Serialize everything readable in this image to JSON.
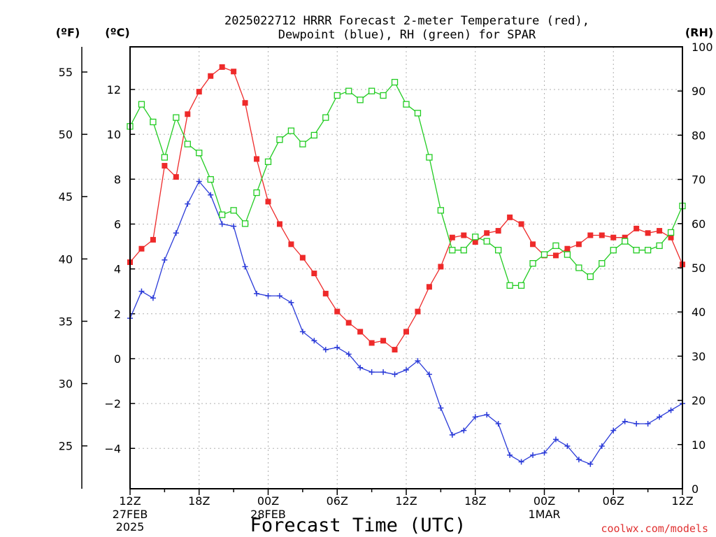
{
  "chart_data": {
    "type": "line",
    "title": [
      "2025022712 HRRR Forecast 2-meter Temperature (red),",
      "Dewpoint (blue), RH (green) for SPAR"
    ],
    "xlabel": "Forecast Time (UTC)",
    "watermark": "coolwx.com/models",
    "x_ticks": [
      {
        "hour": 0,
        "label": "12Z",
        "sub": [
          "27FEB",
          "2025"
        ]
      },
      {
        "hour": 6,
        "label": "18Z",
        "sub": []
      },
      {
        "hour": 12,
        "label": "00Z",
        "sub": [
          "28FEB"
        ]
      },
      {
        "hour": 18,
        "label": "06Z",
        "sub": []
      },
      {
        "hour": 24,
        "label": "12Z",
        "sub": []
      },
      {
        "hour": 30,
        "label": "18Z",
        "sub": []
      },
      {
        "hour": 36,
        "label": "00Z",
        "sub": [
          "1MAR"
        ]
      },
      {
        "hour": 42,
        "label": "06Z",
        "sub": []
      },
      {
        "hour": 48,
        "label": "12Z",
        "sub": []
      }
    ],
    "axes": {
      "fahrenheit": {
        "unit_label": "(ºF)",
        "ticks": [
          25,
          30,
          35,
          40,
          45,
          50,
          55
        ]
      },
      "celsius": {
        "unit_label": "(ºC)",
        "ylim": [
          -5.8,
          13.9
        ],
        "ticks": [
          -4,
          -2,
          0,
          2,
          4,
          6,
          8,
          10,
          12
        ]
      },
      "rh": {
        "unit_label": "(RH)",
        "ylim": [
          0,
          100
        ],
        "ticks": [
          0,
          10,
          20,
          30,
          40,
          50,
          60,
          70,
          80,
          90,
          100
        ]
      }
    },
    "grid": true,
    "series": [
      {
        "name": "2-meter Temperature",
        "axis": "celsius",
        "color": "#ee2a2a",
        "marker": "filled-square",
        "values": [
          4.3,
          4.9,
          5.3,
          8.6,
          8.1,
          10.9,
          11.9,
          12.6,
          13.0,
          12.8,
          11.4,
          8.9,
          7.0,
          6.0,
          5.1,
          4.5,
          3.8,
          2.9,
          2.1,
          1.6,
          1.2,
          0.7,
          0.8,
          0.4,
          1.2,
          2.1,
          3.2,
          4.1,
          5.4,
          5.5,
          5.2,
          5.6,
          5.7,
          6.3,
          6.0,
          5.1,
          4.6,
          4.6,
          4.9,
          5.1,
          5.5,
          5.5,
          5.4,
          5.4,
          5.8,
          5.6,
          5.7,
          5.4,
          4.2
        ]
      },
      {
        "name": "Dewpoint",
        "axis": "celsius",
        "color": "#2a3ad8",
        "marker": "plus",
        "values": [
          1.8,
          3.0,
          2.7,
          4.4,
          5.6,
          6.9,
          7.9,
          7.3,
          6.0,
          5.9,
          4.1,
          2.9,
          2.8,
          2.8,
          2.5,
          1.2,
          0.8,
          0.4,
          0.5,
          0.2,
          -0.4,
          -0.6,
          -0.6,
          -0.7,
          -0.5,
          -0.1,
          -0.7,
          -2.2,
          -3.4,
          -3.2,
          -2.6,
          -2.5,
          -2.9,
          -4.3,
          -4.6,
          -4.3,
          -4.2,
          -3.6,
          -3.9,
          -4.5,
          -4.7,
          -3.9,
          -3.2,
          -2.8,
          -2.9,
          -2.9,
          -2.6,
          -2.3,
          -2.0
        ]
      },
      {
        "name": "RH",
        "axis": "rh",
        "color": "#22cc22",
        "marker": "open-square",
        "values": [
          82,
          87,
          83,
          75,
          84,
          78,
          76,
          70,
          62,
          63,
          60,
          67,
          74,
          79,
          81,
          78,
          80,
          84,
          89,
          90,
          88,
          90,
          89,
          92,
          87,
          85,
          75,
          63,
          54,
          54,
          57,
          56,
          54,
          46,
          46,
          51,
          53,
          55,
          53,
          50,
          48,
          51,
          54,
          56,
          54,
          54,
          55,
          58,
          64
        ]
      }
    ]
  }
}
